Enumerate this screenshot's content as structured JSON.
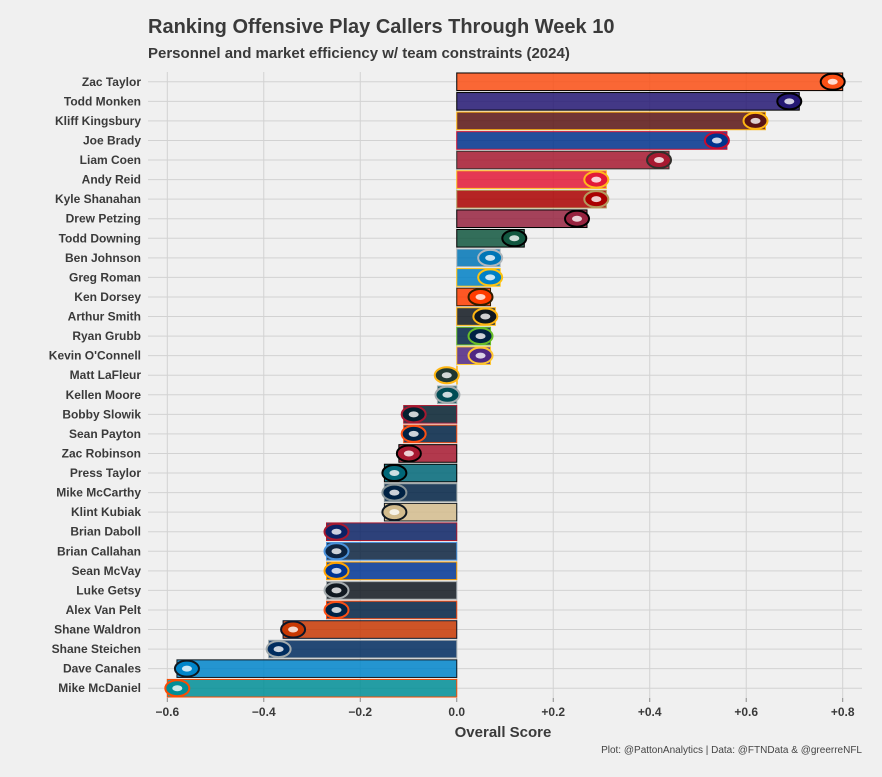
{
  "chart_data": {
    "type": "bar",
    "orientation": "horizontal",
    "title": "Ranking Offensive Play Callers Through Week 10",
    "subtitle": "Personnel and market efficiency w/ team constraints (2024)",
    "xlabel": "Overall Score",
    "ylabel": "",
    "xlim": [
      -0.64,
      0.84
    ],
    "xticks": [
      -0.6,
      -0.4,
      -0.2,
      0.0,
      0.2,
      0.4,
      0.6,
      0.8
    ],
    "xtick_labels": [
      "−0.6",
      "−0.4",
      "−0.2",
      "0.0",
      "+0.2",
      "+0.4",
      "+0.6",
      "+0.8"
    ],
    "grid": true,
    "caption": "Plot: @PattonAnalytics | Data: @FTNData & @greerreNFL",
    "categories": [
      "Zac Taylor",
      "Todd Monken",
      "Kliff Kingsbury",
      "Joe Brady",
      "Liam Coen",
      "Andy Reid",
      "Kyle Shanahan",
      "Drew Petzing",
      "Todd Downing",
      "Ben Johnson",
      "Greg Roman",
      "Ken Dorsey",
      "Arthur Smith",
      "Ryan Grubb",
      "Kevin O'Connell",
      "Matt LaFleur",
      "Kellen Moore",
      "Bobby Slowik",
      "Sean Payton",
      "Zac Robinson",
      "Press Taylor",
      "Mike McCarthy",
      "Klint Kubiak",
      "Brian Daboll",
      "Brian Callahan",
      "Sean McVay",
      "Luke Getsy",
      "Alex Van Pelt",
      "Shane Waldron",
      "Shane Steichen",
      "Dave Canales",
      "Mike McDaniel"
    ],
    "values": [
      0.8,
      0.71,
      0.64,
      0.56,
      0.44,
      0.31,
      0.31,
      0.27,
      0.14,
      0.09,
      0.09,
      0.07,
      0.08,
      0.07,
      0.07,
      0.0,
      -0.04,
      -0.11,
      -0.11,
      -0.12,
      -0.15,
      -0.15,
      -0.15,
      -0.27,
      -0.27,
      -0.27,
      -0.27,
      -0.27,
      -0.36,
      -0.39,
      -0.58,
      -0.6
    ],
    "teams": [
      "Bengals",
      "Ravens",
      "Commanders",
      "Bills",
      "Buccaneers",
      "Chiefs",
      "49ers",
      "Cardinals",
      "Jets",
      "Lions",
      "Chargers",
      "Browns",
      "Steelers",
      "Seahawks",
      "Vikings",
      "Packers",
      "Eagles",
      "Texans",
      "Broncos",
      "Falcons",
      "Jaguars",
      "Cowboys",
      "Saints",
      "Giants",
      "Titans",
      "Rams",
      "Raiders",
      "Browns",
      "Bears",
      "Colts",
      "Panthers",
      "Dolphins"
    ],
    "fill_colors": [
      "#FB4F14",
      "#241773",
      "#5A1414",
      "#00338D",
      "#A71930",
      "#E31837",
      "#AA0000",
      "#97233F",
      "#125740",
      "#0076B6",
      "#0080C6",
      "#FF3C00",
      "#101820",
      "#002244",
      "#4F2683",
      "#203731",
      "#004C54",
      "#03202F",
      "#002244",
      "#A71930",
      "#006778",
      "#002244",
      "#D3BC8D",
      "#0B2265",
      "#0C2340",
      "#003594",
      "#101820",
      "#002244",
      "#C83803",
      "#002C5F",
      "#0085CA",
      "#008E97"
    ],
    "outline_colors": [
      "#000000",
      "#000000",
      "#FFB612",
      "#C60C30",
      "#322F2B",
      "#FFB81C",
      "#B3995D",
      "#000000",
      "#000000",
      "#B0B7BC",
      "#FFC20E",
      "#311D00",
      "#FFB612",
      "#69BE28",
      "#FFC62F",
      "#FFB612",
      "#A5ACAF",
      "#A71930",
      "#FB4F14",
      "#000000",
      "#000000",
      "#869397",
      "#101820",
      "#A71930",
      "#4B92DB",
      "#FFA300",
      "#A5ACAF",
      "#FB4F14",
      "#0B162A",
      "#A2AAAD",
      "#101820",
      "#FC4C02"
    ],
    "logo_icons": [
      "bengals-logo-icon",
      "ravens-logo-icon",
      "commanders-logo-icon",
      "bills-logo-icon",
      "buccaneers-logo-icon",
      "chiefs-logo-icon",
      "49ers-logo-icon",
      "cardinals-logo-icon",
      "jets-logo-icon",
      "lions-logo-icon",
      "chargers-logo-icon",
      "browns-logo-icon",
      "steelers-logo-icon",
      "seahawks-logo-icon",
      "vikings-logo-icon",
      "packers-logo-icon",
      "eagles-logo-icon",
      "texans-logo-icon",
      "broncos-logo-icon",
      "falcons-logo-icon",
      "jaguars-logo-icon",
      "cowboys-logo-icon",
      "saints-logo-icon",
      "giants-logo-icon",
      "titans-logo-icon",
      "rams-logo-icon",
      "raiders-logo-icon",
      "browns-logo-icon",
      "bears-logo-icon",
      "colts-logo-icon",
      "panthers-logo-icon",
      "dolphins-logo-icon"
    ]
  }
}
